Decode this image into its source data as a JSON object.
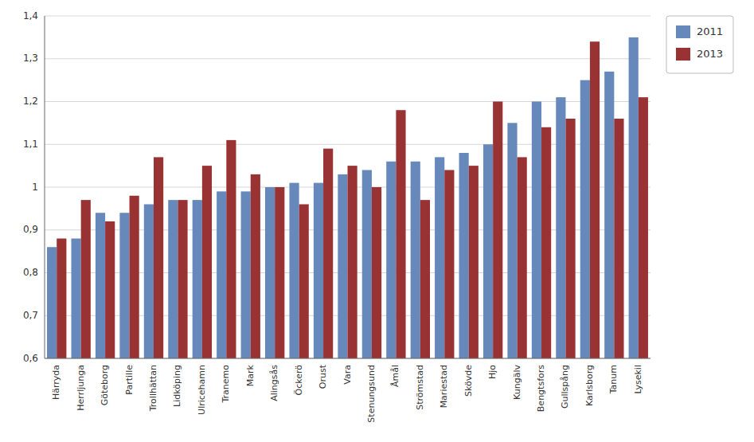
{
  "chart_data": {
    "type": "bar",
    "categories": [
      "Härryda",
      "Herrljunga",
      "Göteborg",
      "Partille",
      "Trollhättan",
      "Lidköping",
      "Ulricehamn",
      "Tranemo",
      "Mark",
      "Alingsås",
      "Öckerö",
      "Orust",
      "Vara",
      "Stenungsund",
      "Åmål",
      "Strömstad",
      "Mariestad",
      "Skövde",
      "Hjo",
      "Kungälv",
      "Bengtsfors",
      "Gullspång",
      "Karlsborg",
      "Tanum",
      "Lysekil"
    ],
    "series": [
      {
        "name": "2011",
        "color": "#6688BB",
        "values": [
          0.86,
          0.88,
          0.94,
          0.94,
          0.96,
          0.97,
          0.97,
          0.99,
          0.99,
          1.0,
          1.01,
          1.01,
          1.03,
          1.04,
          1.06,
          1.06,
          1.07,
          1.08,
          1.1,
          1.15,
          1.2,
          1.21,
          1.25,
          1.27,
          1.35
        ]
      },
      {
        "name": "2013",
        "color": "#993333",
        "values": [
          0.88,
          0.97,
          0.92,
          0.98,
          1.07,
          0.97,
          1.05,
          1.11,
          1.03,
          1.0,
          0.96,
          1.09,
          1.05,
          1.0,
          1.18,
          0.97,
          1.04,
          1.05,
          1.2,
          1.07,
          1.14,
          1.16,
          1.34,
          1.16,
          1.21
        ]
      }
    ],
    "ylim": [
      0.6,
      1.4
    ],
    "yticks": [
      {
        "value": 0.6,
        "label": "0,6"
      },
      {
        "value": 0.7,
        "label": "0,7"
      },
      {
        "value": 0.8,
        "label": "0,8"
      },
      {
        "value": 0.9,
        "label": "0,9"
      },
      1,
      {
        "value": 1.1,
        "label": "1,1"
      },
      {
        "value": 1.2,
        "label": "1,2"
      },
      {
        "value": 1.3,
        "label": "1,3"
      },
      {
        "value": 1.4,
        "label": "1,4"
      }
    ],
    "grid": true,
    "legend": "right"
  }
}
